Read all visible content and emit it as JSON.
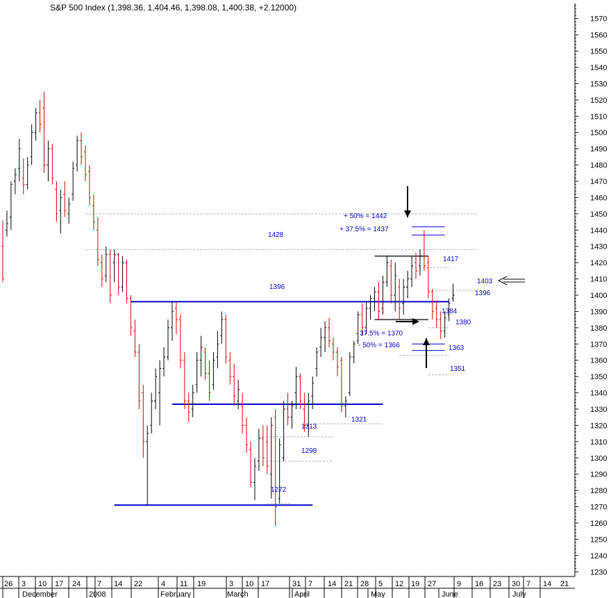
{
  "chart_data": {
    "type": "ohlc",
    "title": "S&P 500 Index (1,398.36, 1,404.46, 1,398.08, 1,400.38, +2.12000)",
    "ylim": [
      1230,
      1575
    ],
    "yticks": [
      1230,
      1240,
      1250,
      1260,
      1270,
      1280,
      1290,
      1300,
      1310,
      1320,
      1330,
      1340,
      1350,
      1360,
      1370,
      1380,
      1390,
      1400,
      1410,
      1420,
      1430,
      1440,
      1450,
      1460,
      1470,
      1480,
      1490,
      1500,
      1510,
      1520,
      1530,
      1540,
      1550,
      1560,
      1570
    ],
    "day_labels": [
      "26",
      "3",
      "10",
      "17",
      "24",
      "7",
      "14",
      "22",
      "4",
      "11",
      "19",
      "3",
      "10",
      "17",
      "31",
      "7",
      "14",
      "21",
      "28",
      "5",
      "12",
      "19",
      "27",
      "9",
      "16",
      "23",
      "30",
      "7",
      "14",
      "21"
    ],
    "month_labels": [
      "December",
      "2008",
      "February",
      "March",
      "April",
      "May",
      "June",
      "July"
    ],
    "bars": [
      {
        "i": 0,
        "o": 1430,
        "h": 1446,
        "l": 1408,
        "c": 1410
      },
      {
        "i": 1,
        "o": 1440,
        "h": 1452,
        "l": 1436,
        "c": 1444
      },
      {
        "i": 2,
        "o": 1448,
        "h": 1470,
        "l": 1440,
        "c": 1468
      },
      {
        "i": 3,
        "o": 1470,
        "h": 1478,
        "l": 1462,
        "c": 1474
      },
      {
        "i": 4,
        "o": 1478,
        "h": 1496,
        "l": 1470,
        "c": 1490
      },
      {
        "i": 5,
        "o": 1472,
        "h": 1484,
        "l": 1462,
        "c": 1468
      },
      {
        "i": 6,
        "o": 1468,
        "h": 1485,
        "l": 1465,
        "c": 1480
      },
      {
        "i": 7,
        "o": 1485,
        "h": 1505,
        "l": 1480,
        "c": 1500
      },
      {
        "i": 8,
        "o": 1500,
        "h": 1515,
        "l": 1495,
        "c": 1512
      },
      {
        "i": 9,
        "o": 1512,
        "h": 1520,
        "l": 1500,
        "c": 1505
      },
      {
        "i": 10,
        "o": 1515,
        "h": 1525,
        "l": 1475,
        "c": 1480
      },
      {
        "i": 11,
        "o": 1480,
        "h": 1495,
        "l": 1470,
        "c": 1490
      },
      {
        "i": 12,
        "o": 1490,
        "h": 1493,
        "l": 1468,
        "c": 1472
      },
      {
        "i": 13,
        "o": 1465,
        "h": 1470,
        "l": 1445,
        "c": 1450
      },
      {
        "i": 14,
        "o": 1452,
        "h": 1465,
        "l": 1438,
        "c": 1460
      },
      {
        "i": 15,
        "o": 1462,
        "h": 1470,
        "l": 1448,
        "c": 1452
      },
      {
        "i": 16,
        "o": 1450,
        "h": 1460,
        "l": 1444,
        "c": 1456
      },
      {
        "i": 17,
        "o": 1462,
        "h": 1482,
        "l": 1458,
        "c": 1478
      },
      {
        "i": 18,
        "o": 1480,
        "h": 1498,
        "l": 1476,
        "c": 1495
      },
      {
        "i": 19,
        "o": 1495,
        "h": 1500,
        "l": 1480,
        "c": 1485
      },
      {
        "i": 20,
        "o": 1488,
        "h": 1492,
        "l": 1470,
        "c": 1474
      },
      {
        "i": 21,
        "o": 1476,
        "h": 1480,
        "l": 1455,
        "c": 1460
      },
      {
        "i": 22,
        "o": 1455,
        "h": 1462,
        "l": 1440,
        "c": 1445
      },
      {
        "i": 23,
        "o": 1440,
        "h": 1448,
        "l": 1418,
        "c": 1422
      },
      {
        "i": 24,
        "o": 1420,
        "h": 1425,
        "l": 1405,
        "c": 1410
      },
      {
        "i": 25,
        "o": 1412,
        "h": 1430,
        "l": 1408,
        "c": 1425
      },
      {
        "i": 26,
        "o": 1425,
        "h": 1428,
        "l": 1395,
        "c": 1400
      },
      {
        "i": 27,
        "o": 1420,
        "h": 1428,
        "l": 1408,
        "c": 1425
      },
      {
        "i": 28,
        "o": 1425,
        "h": 1426,
        "l": 1400,
        "c": 1405
      },
      {
        "i": 29,
        "o": 1405,
        "h": 1424,
        "l": 1402,
        "c": 1420
      },
      {
        "i": 30,
        "o": 1420,
        "h": 1422,
        "l": 1395,
        "c": 1398
      },
      {
        "i": 31,
        "o": 1398,
        "h": 1400,
        "l": 1375,
        "c": 1380
      },
      {
        "i": 32,
        "o": 1378,
        "h": 1385,
        "l": 1362,
        "c": 1365
      },
      {
        "i": 33,
        "o": 1365,
        "h": 1370,
        "l": 1330,
        "c": 1335
      },
      {
        "i": 34,
        "o": 1340,
        "h": 1345,
        "l": 1300,
        "c": 1310
      },
      {
        "i": 35,
        "o": 1310,
        "h": 1320,
        "l": 1271,
        "c": 1315
      },
      {
        "i": 36,
        "o": 1320,
        "h": 1340,
        "l": 1315,
        "c": 1335
      },
      {
        "i": 37,
        "o": 1335,
        "h": 1355,
        "l": 1330,
        "c": 1350
      },
      {
        "i": 38,
        "o": 1340,
        "h": 1360,
        "l": 1320,
        "c": 1355
      },
      {
        "i": 39,
        "o": 1355,
        "h": 1368,
        "l": 1350,
        "c": 1362
      },
      {
        "i": 40,
        "o": 1362,
        "h": 1385,
        "l": 1360,
        "c": 1380
      },
      {
        "i": 41,
        "o": 1380,
        "h": 1396,
        "l": 1372,
        "c": 1390
      },
      {
        "i": 42,
        "o": 1392,
        "h": 1396,
        "l": 1376,
        "c": 1385
      },
      {
        "i": 43,
        "o": 1385,
        "h": 1388,
        "l": 1355,
        "c": 1360
      },
      {
        "i": 44,
        "o": 1360,
        "h": 1365,
        "l": 1330,
        "c": 1335
      },
      {
        "i": 45,
        "o": 1335,
        "h": 1340,
        "l": 1322,
        "c": 1328
      },
      {
        "i": 46,
        "o": 1330,
        "h": 1345,
        "l": 1325,
        "c": 1340
      },
      {
        "i": 47,
        "o": 1345,
        "h": 1365,
        "l": 1340,
        "c": 1360
      },
      {
        "i": 48,
        "o": 1360,
        "h": 1375,
        "l": 1350,
        "c": 1368
      },
      {
        "i": 49,
        "o": 1365,
        "h": 1368,
        "l": 1348,
        "c": 1352
      },
      {
        "i": 50,
        "o": 1352,
        "h": 1360,
        "l": 1335,
        "c": 1340
      },
      {
        "i": 51,
        "o": 1345,
        "h": 1365,
        "l": 1342,
        "c": 1360
      },
      {
        "i": 52,
        "o": 1362,
        "h": 1378,
        "l": 1355,
        "c": 1370
      },
      {
        "i": 53,
        "o": 1375,
        "h": 1390,
        "l": 1370,
        "c": 1385
      },
      {
        "i": 54,
        "o": 1385,
        "h": 1388,
        "l": 1358,
        "c": 1362
      },
      {
        "i": 55,
        "o": 1360,
        "h": 1365,
        "l": 1345,
        "c": 1350
      },
      {
        "i": 56,
        "o": 1350,
        "h": 1358,
        "l": 1332,
        "c": 1338
      },
      {
        "i": 57,
        "o": 1335,
        "h": 1348,
        "l": 1330,
        "c": 1342
      },
      {
        "i": 58,
        "o": 1332,
        "h": 1340,
        "l": 1315,
        "c": 1320
      },
      {
        "i": 59,
        "o": 1320,
        "h": 1325,
        "l": 1303,
        "c": 1308
      },
      {
        "i": 60,
        "o": 1305,
        "h": 1310,
        "l": 1282,
        "c": 1285
      },
      {
        "i": 61,
        "o": 1285,
        "h": 1300,
        "l": 1274,
        "c": 1295
      },
      {
        "i": 62,
        "o": 1298,
        "h": 1318,
        "l": 1292,
        "c": 1312
      },
      {
        "i": 63,
        "o": 1312,
        "h": 1320,
        "l": 1295,
        "c": 1300
      },
      {
        "i": 64,
        "o": 1310,
        "h": 1320,
        "l": 1290,
        "c": 1295
      },
      {
        "i": 65,
        "o": 1290,
        "h": 1325,
        "l": 1275,
        "c": 1320
      },
      {
        "i": 66,
        "o": 1325,
        "h": 1330,
        "l": 1258,
        "c": 1270
      },
      {
        "i": 67,
        "o": 1275,
        "h": 1312,
        "l": 1272,
        "c": 1308
      },
      {
        "i": 68,
        "o": 1300,
        "h": 1335,
        "l": 1298,
        "c": 1330
      },
      {
        "i": 69,
        "o": 1330,
        "h": 1340,
        "l": 1320,
        "c": 1325
      },
      {
        "i": 70,
        "o": 1325,
        "h": 1335,
        "l": 1318,
        "c": 1332
      },
      {
        "i": 71,
        "o": 1340,
        "h": 1356,
        "l": 1330,
        "c": 1350
      },
      {
        "i": 72,
        "o": 1350,
        "h": 1352,
        "l": 1330,
        "c": 1335
      },
      {
        "i": 73,
        "o": 1330,
        "h": 1340,
        "l": 1316,
        "c": 1320
      },
      {
        "i": 74,
        "o": 1320,
        "h": 1340,
        "l": 1313,
        "c": 1335
      },
      {
        "i": 75,
        "o": 1338,
        "h": 1350,
        "l": 1330,
        "c": 1346
      },
      {
        "i": 76,
        "o": 1355,
        "h": 1368,
        "l": 1350,
        "c": 1365
      },
      {
        "i": 77,
        "o": 1368,
        "h": 1380,
        "l": 1362,
        "c": 1374
      },
      {
        "i": 78,
        "o": 1374,
        "h": 1384,
        "l": 1365,
        "c": 1380
      },
      {
        "i": 79,
        "o": 1380,
        "h": 1386,
        "l": 1368,
        "c": 1372
      },
      {
        "i": 80,
        "o": 1370,
        "h": 1374,
        "l": 1360,
        "c": 1365
      },
      {
        "i": 81,
        "o": 1365,
        "h": 1368,
        "l": 1350,
        "c": 1356
      },
      {
        "i": 82,
        "o": 1360,
        "h": 1362,
        "l": 1328,
        "c": 1332
      },
      {
        "i": 83,
        "o": 1332,
        "h": 1338,
        "l": 1325,
        "c": 1335
      },
      {
        "i": 84,
        "o": 1340,
        "h": 1365,
        "l": 1338,
        "c": 1362
      },
      {
        "i": 85,
        "o": 1362,
        "h": 1372,
        "l": 1358,
        "c": 1370
      },
      {
        "i": 86,
        "o": 1372,
        "h": 1390,
        "l": 1370,
        "c": 1388
      },
      {
        "i": 87,
        "o": 1388,
        "h": 1395,
        "l": 1375,
        "c": 1380
      },
      {
        "i": 88,
        "o": 1380,
        "h": 1396,
        "l": 1376,
        "c": 1392
      },
      {
        "i": 89,
        "o": 1392,
        "h": 1400,
        "l": 1385,
        "c": 1398
      },
      {
        "i": 90,
        "o": 1398,
        "h": 1405,
        "l": 1390,
        "c": 1402
      },
      {
        "i": 91,
        "o": 1402,
        "h": 1408,
        "l": 1385,
        "c": 1390
      },
      {
        "i": 92,
        "o": 1392,
        "h": 1412,
        "l": 1388,
        "c": 1408
      },
      {
        "i": 93,
        "o": 1408,
        "h": 1424,
        "l": 1405,
        "c": 1420
      },
      {
        "i": 94,
        "o": 1418,
        "h": 1422,
        "l": 1395,
        "c": 1400
      },
      {
        "i": 95,
        "o": 1400,
        "h": 1420,
        "l": 1390,
        "c": 1412
      },
      {
        "i": 96,
        "o": 1405,
        "h": 1410,
        "l": 1385,
        "c": 1392
      },
      {
        "i": 97,
        "o": 1395,
        "h": 1410,
        "l": 1388,
        "c": 1405
      },
      {
        "i": 98,
        "o": 1405,
        "h": 1415,
        "l": 1398,
        "c": 1410
      },
      {
        "i": 99,
        "o": 1410,
        "h": 1424,
        "l": 1405,
        "c": 1418
      },
      {
        "i": 100,
        "o": 1420,
        "h": 1426,
        "l": 1410,
        "c": 1415
      },
      {
        "i": 101,
        "o": 1418,
        "h": 1428,
        "l": 1412,
        "c": 1424
      },
      {
        "i": 102,
        "o": 1424,
        "h": 1440,
        "l": 1415,
        "c": 1418
      },
      {
        "i": 103,
        "o": 1420,
        "h": 1424,
        "l": 1398,
        "c": 1402
      },
      {
        "i": 104,
        "o": 1402,
        "h": 1404,
        "l": 1385,
        "c": 1390
      },
      {
        "i": 105,
        "o": 1392,
        "h": 1396,
        "l": 1380,
        "c": 1385
      },
      {
        "i": 106,
        "o": 1385,
        "h": 1390,
        "l": 1373,
        "c": 1378
      },
      {
        "i": 107,
        "o": 1378,
        "h": 1390,
        "l": 1374,
        "c": 1386
      },
      {
        "i": 108,
        "o": 1388,
        "h": 1398,
        "l": 1384,
        "c": 1395
      },
      {
        "i": 109,
        "o": 1398,
        "h": 1407,
        "l": 1396,
        "c": 1400
      }
    ],
    "hlines_blue": [
      {
        "y": 1396,
        "i0": 31,
        "i1": 108
      },
      {
        "y": 1333,
        "i0": 41,
        "i1": 92
      },
      {
        "y": 1271,
        "i0": 27,
        "i1": 75
      }
    ],
    "hlines_gray": [
      {
        "y": 1424,
        "i0": 90,
        "i1": 103
      },
      {
        "y": 1385,
        "i0": 90,
        "i1": 103
      }
    ],
    "dashed_levels": [
      {
        "y": 1450,
        "i0": 20,
        "i1": 115
      },
      {
        "y": 1428,
        "i0": 20,
        "i1": 115
      },
      {
        "y": 1417,
        "i0": 100,
        "i1": 108
      },
      {
        "y": 1403,
        "i0": 103,
        "i1": 115
      },
      {
        "y": 1396,
        "i0": 103,
        "i1": 108
      },
      {
        "y": 1380,
        "i0": 103,
        "i1": 108
      },
      {
        "y": 1363,
        "i0": 96,
        "i1": 108
      },
      {
        "y": 1351,
        "i0": 103,
        "i1": 108
      },
      {
        "y": 1321,
        "i0": 75,
        "i1": 92
      },
      {
        "y": 1313,
        "i0": 62,
        "i1": 80
      },
      {
        "y": 1298,
        "i0": 64,
        "i1": 80
      },
      {
        "y": 1272,
        "i0": 64,
        "i1": 70
      }
    ],
    "fib_lines": [
      {
        "y": 1442,
        "i0": 99,
        "i1": 107
      },
      {
        "y": 1437,
        "i0": 99,
        "i1": 107
      },
      {
        "y": 1370,
        "i0": 99,
        "i1": 107
      },
      {
        "y": 1366,
        "i0": 99,
        "i1": 107
      }
    ],
    "labels": [
      "1428",
      "1396",
      "1417",
      "1403",
      "1396",
      "1384",
      "1380",
      "1363",
      "1351",
      "1321",
      "1313",
      "1298",
      "1272",
      "+ 50% = 1442",
      "+ 37.5% = 1437",
      "- 37.5% = 1370",
      "- 50% = 1366"
    ]
  }
}
